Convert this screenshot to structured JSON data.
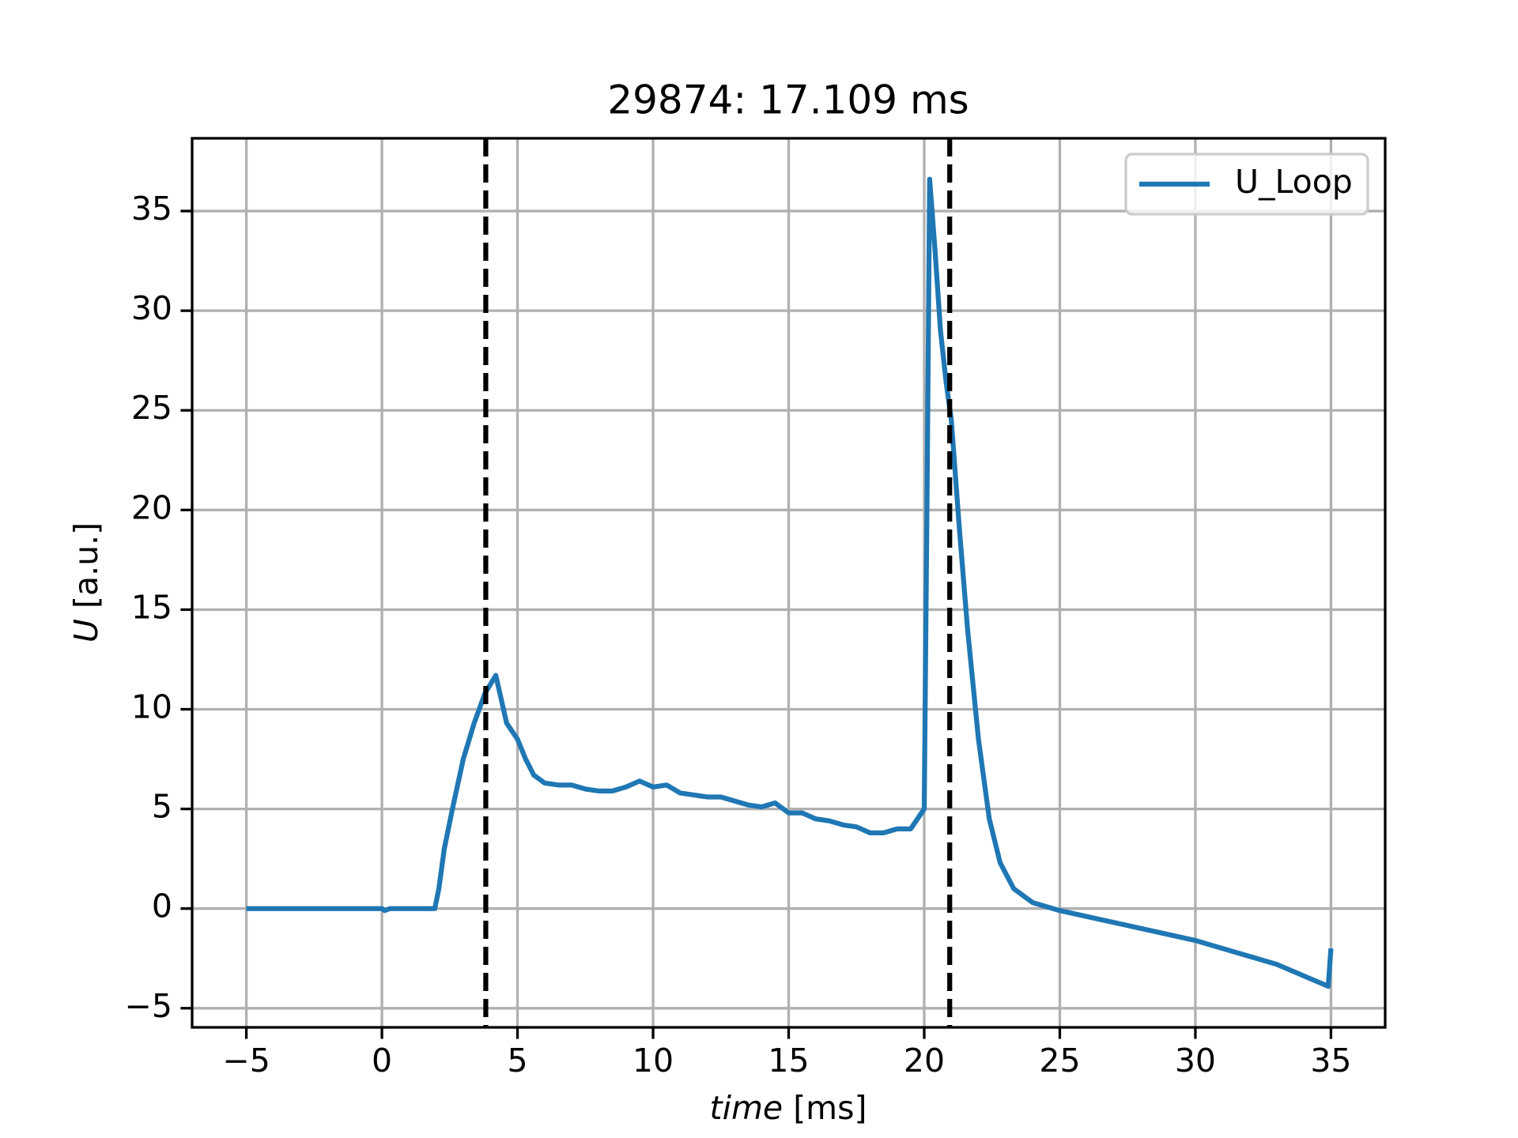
{
  "chart_data": {
    "type": "line",
    "title": "29874: 17.109 ms",
    "x_label": {
      "symbol": "time",
      "unit": "[ms]"
    },
    "y_label": {
      "symbol": "U",
      "unit": "[a.u.]"
    },
    "xlim": [
      -7,
      37
    ],
    "ylim": [
      -5.96,
      38.65
    ],
    "xticks": [
      {
        "value": -5,
        "label": "−5"
      },
      0,
      5,
      10,
      15,
      20,
      25,
      30,
      35
    ],
    "yticks": [
      {
        "value": -5,
        "label": "−5"
      },
      0,
      5,
      10,
      15,
      20,
      25,
      30,
      35
    ],
    "grid": true,
    "legend": "upper right",
    "vlines": [
      3.83,
      20.94
    ],
    "vline_color": "#000000",
    "series": [
      {
        "name": "U_Loop",
        "color": "#1f77b4",
        "x": [
          -5,
          0,
          0.1,
          0.3,
          1.95,
          2.1,
          2.3,
          2.6,
          3.0,
          3.4,
          3.8,
          4.2,
          4.4,
          4.6,
          5.0,
          5.3,
          5.6,
          6.0,
          6.5,
          7,
          7.5,
          8,
          8.5,
          9,
          9.5,
          10,
          10.5,
          11,
          11.5,
          12,
          12.5,
          13,
          13.5,
          14,
          14.5,
          15,
          15.5,
          16,
          16.5,
          17,
          17.5,
          18,
          18.5,
          19,
          19.5,
          19.8,
          20.0,
          20.1,
          20.2,
          20.4,
          20.6,
          20.8,
          21.0,
          21.3,
          21.6,
          22.0,
          22.4,
          22.8,
          23.3,
          24,
          25,
          27,
          30,
          33,
          34.9,
          35
        ],
        "values": [
          0,
          0,
          -0.1,
          0,
          0,
          1,
          3,
          5,
          7.5,
          9.3,
          10.8,
          11.7,
          10.5,
          9.3,
          8.5,
          7.5,
          6.7,
          6.3,
          6.2,
          6.2,
          6.0,
          5.9,
          5.9,
          6.1,
          6.4,
          6.1,
          6.2,
          5.8,
          5.7,
          5.6,
          5.6,
          5.4,
          5.2,
          5.1,
          5.3,
          4.8,
          4.8,
          4.5,
          4.4,
          4.2,
          4.1,
          3.8,
          3.8,
          4.0,
          4.0,
          4.6,
          5,
          20,
          36.6,
          33,
          29,
          26.5,
          24.5,
          19,
          14,
          8.5,
          4.5,
          2.3,
          1.0,
          0.3,
          -0.1,
          -0.7,
          -1.6,
          -2.8,
          -3.9,
          -2.0
        ]
      }
    ]
  }
}
